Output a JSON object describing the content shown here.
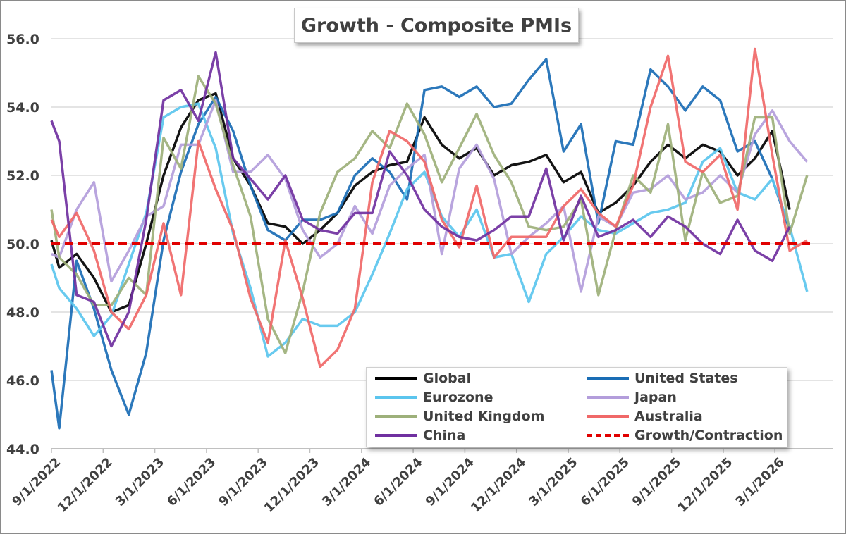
{
  "chart_data": {
    "type": "line",
    "title": "Growth - Composite PMIs",
    "xlabel": "",
    "ylabel": "",
    "ylim": [
      44,
      56
    ],
    "y_ticks": [
      "44.0",
      "46.0",
      "48.0",
      "50.0",
      "52.0",
      "54.0",
      "56.0"
    ],
    "x_tick_labels": [
      "9/1/2022",
      "12/1/2022",
      "3/1/2023",
      "6/1/2023",
      "9/1/2023",
      "12/1/2023",
      "3/1/2024",
      "6/1/2024",
      "9/1/2024",
      "12/1/2024",
      "3/1/2025",
      "6/1/2025",
      "9/1/2025",
      "12/1/2025",
      "3/1/2026"
    ],
    "x": [
      "8/1/2022",
      "9/1/2022",
      "10/1/2022",
      "11/1/2022",
      "12/1/2022",
      "1/1/2023",
      "2/1/2023",
      "3/1/2023",
      "4/1/2023",
      "5/1/2023",
      "6/1/2023",
      "7/1/2023",
      "8/1/2023",
      "9/1/2023",
      "10/1/2023",
      "11/1/2023",
      "12/1/2023",
      "1/1/2024",
      "2/1/2024",
      "3/1/2024",
      "4/1/2024",
      "5/1/2024",
      "6/1/2024",
      "7/1/2024",
      "8/1/2024",
      "9/1/2024",
      "10/1/2024",
      "11/1/2024",
      "12/1/2024",
      "1/1/2025",
      "2/1/2025",
      "3/1/2025",
      "4/1/2025",
      "5/1/2025",
      "6/1/2025",
      "7/1/2025",
      "8/1/2025",
      "9/1/2025",
      "10/1/2025",
      "11/1/2025",
      "12/1/2025",
      "1/1/2026",
      "2/1/2026",
      "3/1/2026",
      "4/1/2026"
    ],
    "grid": "horizontal",
    "legend_placement": "bottom-right",
    "series": [
      {
        "name": "Global",
        "color": "#000000",
        "values": [
          50.1,
          49.3,
          49.7,
          49.0,
          48.0,
          48.2,
          50.0,
          52.0,
          53.4,
          54.2,
          54.4,
          52.5,
          51.7,
          50.6,
          50.5,
          50.0,
          50.4,
          50.9,
          51.7,
          52.1,
          52.3,
          52.4,
          53.7,
          52.9,
          52.5,
          52.8,
          52.0,
          52.3,
          52.4,
          52.6,
          51.8,
          52.1,
          50.9,
          51.2,
          51.7,
          52.4,
          52.9,
          52.5,
          52.9,
          52.7,
          52.0,
          52.5,
          53.3,
          51.0,
          null
        ]
      },
      {
        "name": "United States",
        "color": "#1a6db5",
        "values": [
          46.3,
          44.6,
          49.5,
          48.1,
          46.3,
          45.0,
          46.8,
          50.1,
          52.1,
          53.5,
          54.3,
          53.3,
          51.7,
          50.4,
          50.1,
          50.7,
          50.7,
          50.9,
          52.0,
          52.5,
          52.1,
          51.3,
          54.5,
          54.6,
          54.3,
          54.6,
          54.0,
          54.1,
          54.8,
          55.4,
          52.7,
          53.5,
          50.6,
          53.0,
          52.9,
          55.1,
          54.6,
          53.9,
          54.6,
          54.2,
          52.7,
          53.0,
          51.9,
          50.4,
          null
        ]
      },
      {
        "name": "Eurozone",
        "color": "#5bc5ee",
        "values": [
          49.4,
          48.7,
          48.1,
          47.3,
          47.9,
          49.4,
          50.9,
          53.7,
          54.0,
          54.1,
          52.8,
          50.3,
          48.7,
          46.7,
          47.1,
          47.8,
          47.6,
          47.6,
          48.0,
          49.1,
          50.3,
          51.6,
          52.1,
          50.8,
          50.2,
          51.0,
          49.6,
          49.7,
          48.3,
          49.7,
          50.2,
          50.8,
          50.4,
          50.3,
          50.6,
          50.9,
          51.0,
          51.2,
          52.4,
          52.8,
          51.5,
          51.3,
          51.9,
          50.5,
          48.6
        ]
      },
      {
        "name": "Japan",
        "color": "#b39ddb",
        "values": [
          49.7,
          49.6,
          51.0,
          51.8,
          48.9,
          49.8,
          50.8,
          51.1,
          52.9,
          52.9,
          54.2,
          52.1,
          52.1,
          52.6,
          51.9,
          50.4,
          49.6,
          50.0,
          51.1,
          50.3,
          51.7,
          52.2,
          52.6,
          49.7,
          52.2,
          52.9,
          51.9,
          49.7,
          50.2,
          50.6,
          51.1,
          48.6,
          50.8,
          50.5,
          51.5,
          51.6,
          52.0,
          51.3,
          51.5,
          52.0,
          51.5,
          53.2,
          53.9,
          53.0,
          52.4
        ]
      },
      {
        "name": "United Kingdom",
        "color": "#9db07a",
        "values": [
          51.0,
          49.6,
          49.1,
          48.2,
          48.2,
          49.0,
          48.5,
          53.1,
          52.2,
          54.9,
          54.1,
          52.3,
          50.8,
          47.8,
          46.8,
          48.6,
          50.9,
          52.1,
          52.5,
          53.3,
          52.8,
          54.1,
          53.2,
          51.8,
          52.8,
          53.8,
          52.6,
          51.8,
          50.5,
          50.4,
          50.5,
          51.3,
          48.5,
          50.4,
          52.0,
          51.5,
          53.5,
          50.1,
          52.1,
          51.2,
          51.4,
          53.7,
          53.7,
          50.3,
          52.0
        ]
      },
      {
        "name": "Australia",
        "color": "#f06868",
        "values": [
          50.7,
          50.2,
          50.9,
          49.8,
          48.0,
          47.5,
          48.5,
          50.6,
          48.5,
          53.0,
          51.6,
          50.4,
          48.4,
          47.1,
          50.1,
          48.4,
          46.4,
          46.9,
          48.1,
          51.8,
          53.3,
          53.0,
          52.4,
          50.7,
          49.9,
          51.7,
          49.6,
          50.2,
          50.2,
          50.2,
          51.1,
          51.6,
          50.9,
          50.5,
          51.7,
          54.0,
          55.5,
          52.4,
          52.1,
          52.6,
          51.0,
          55.7,
          52.6,
          49.8,
          50.1
        ]
      },
      {
        "name": "China",
        "color": "#7030a0",
        "values": [
          53.6,
          53.0,
          48.5,
          48.3,
          47.0,
          48.0,
          50.7,
          54.2,
          54.5,
          53.6,
          55.6,
          52.5,
          51.9,
          51.3,
          52.0,
          50.7,
          50.4,
          50.3,
          50.9,
          50.9,
          52.7,
          52.0,
          51.0,
          50.5,
          50.2,
          50.1,
          50.4,
          50.8,
          50.8,
          52.2,
          50.1,
          51.4,
          50.2,
          50.4,
          50.7,
          50.2,
          50.8,
          50.5,
          50.0,
          49.7,
          50.7,
          49.8,
          49.5,
          50.5,
          null
        ]
      }
    ],
    "reference_line": {
      "name": "Growth/Contraction",
      "value": 50.0,
      "color": "#e00000",
      "style": "dashed"
    }
  }
}
